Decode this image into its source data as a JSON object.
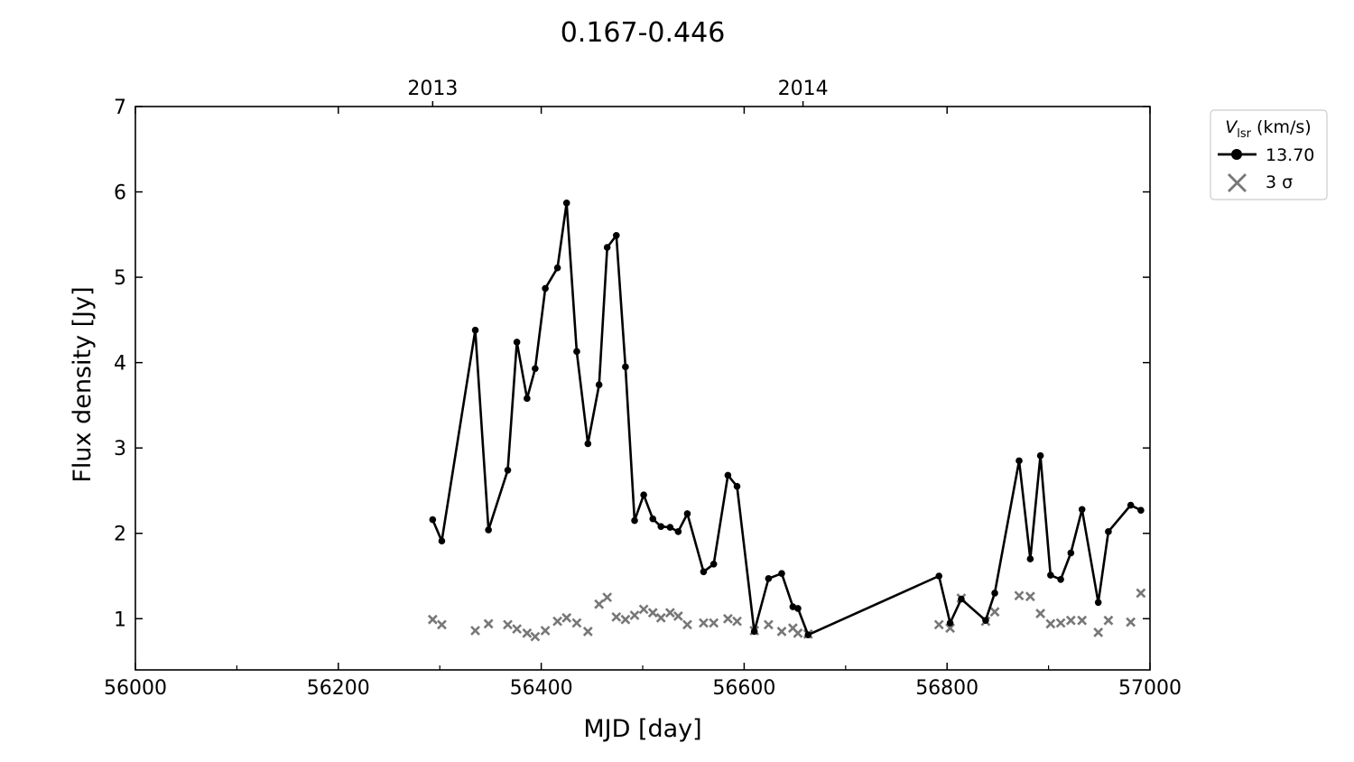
{
  "chart_data": {
    "type": "line",
    "title": "0.167-0.446",
    "xlabel": "MJD [day]",
    "ylabel": "Flux density [Jy]",
    "xlim": [
      56000,
      57000
    ],
    "ylim": [
      0.4,
      7
    ],
    "x_ticks": [
      56000,
      56200,
      56400,
      56600,
      56800,
      57000
    ],
    "x_tick_labels": [
      "56000",
      "56200",
      "56400",
      "56600",
      "56800",
      "57000"
    ],
    "x_minor_ticks": [
      56100,
      56300,
      56500,
      56700,
      56900
    ],
    "y_ticks": [
      1,
      2,
      3,
      4,
      5,
      6,
      7
    ],
    "y_tick_labels": [
      "1",
      "2",
      "3",
      "4",
      "5",
      "6",
      "7"
    ],
    "top_axis": {
      "ticks": [
        56293,
        56658
      ],
      "tick_labels": [
        "2013",
        "2014"
      ]
    },
    "grid": false,
    "legend": {
      "position": "outside-right-top",
      "title_main": "V",
      "title_sub": "lsr",
      "title_rest": " (km/s)",
      "entries": [
        "13.70",
        "3 σ"
      ]
    },
    "series": [
      {
        "name": "13.70",
        "color": "#000000",
        "marker": "circle",
        "x": [
          56293,
          56302,
          56335,
          56348,
          56367,
          56376,
          56386,
          56394,
          56404,
          56416,
          56425,
          56435,
          56446,
          56457,
          56465,
          56474,
          56483,
          56492,
          56501,
          56510,
          56518,
          56527,
          56535,
          56544,
          56560,
          56570,
          56584,
          56593,
          56610,
          56624,
          56637,
          56648,
          56653,
          56663,
          56792,
          56803,
          56814,
          56838,
          56847,
          56871,
          56882,
          56892,
          56902,
          56912,
          56922,
          56933,
          56949,
          56959,
          56981,
          56991
        ],
        "y": [
          2.16,
          1.91,
          4.38,
          2.04,
          2.74,
          4.24,
          3.58,
          3.93,
          4.87,
          5.11,
          5.87,
          4.13,
          3.05,
          3.74,
          5.35,
          5.49,
          3.95,
          2.15,
          2.45,
          2.17,
          2.08,
          2.07,
          2.02,
          2.23,
          1.55,
          1.64,
          2.68,
          2.55,
          0.85,
          1.47,
          1.53,
          1.14,
          1.12,
          0.81,
          1.5,
          0.95,
          1.23,
          0.98,
          1.3,
          2.85,
          1.7,
          2.91,
          1.51,
          1.46,
          1.77,
          2.28,
          1.19,
          2.02,
          2.33,
          2.27
        ]
      },
      {
        "name": "3 σ",
        "color": "#777777",
        "marker": "x",
        "x": [
          56293,
          56302,
          56335,
          56348,
          56367,
          56376,
          56386,
          56394,
          56404,
          56416,
          56425,
          56435,
          56446,
          56457,
          56465,
          56474,
          56483,
          56492,
          56501,
          56510,
          56518,
          56527,
          56535,
          56544,
          56560,
          56570,
          56584,
          56593,
          56610,
          56624,
          56637,
          56648,
          56653,
          56663,
          56792,
          56803,
          56814,
          56838,
          56847,
          56871,
          56882,
          56892,
          56902,
          56912,
          56922,
          56933,
          56949,
          56959,
          56981,
          56991
        ],
        "y": [
          0.99,
          0.93,
          0.86,
          0.94,
          0.93,
          0.88,
          0.83,
          0.79,
          0.86,
          0.97,
          1.01,
          0.95,
          0.85,
          1.17,
          1.25,
          1.02,
          0.99,
          1.04,
          1.11,
          1.07,
          1.01,
          1.07,
          1.03,
          0.93,
          0.95,
          0.95,
          1.0,
          0.97,
          0.86,
          0.93,
          0.85,
          0.89,
          0.83,
          0.82,
          0.93,
          0.89,
          1.24,
          0.97,
          1.08,
          1.27,
          1.26,
          1.06,
          0.94,
          0.95,
          0.98,
          0.98,
          0.84,
          0.98,
          0.96,
          1.3
        ]
      }
    ]
  }
}
